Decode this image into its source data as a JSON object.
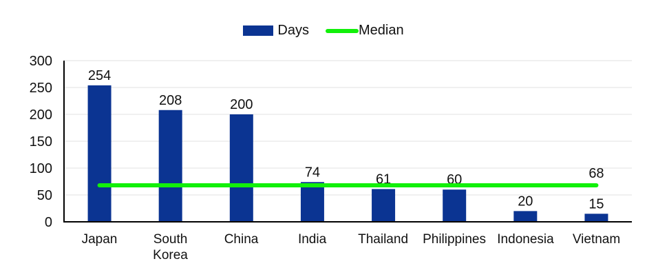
{
  "legend": {
    "items": [
      {
        "label": "Days",
        "swatch": "bar-swatch",
        "color": "#0B3492"
      },
      {
        "label": "Median",
        "swatch": "line-swatch",
        "color": "#12F00A"
      }
    ]
  },
  "chart_data": {
    "type": "bar",
    "title": "",
    "xlabel": "",
    "ylabel": "",
    "categories": [
      "Japan",
      "South Korea",
      "China",
      "India",
      "Thailand",
      "Philippines",
      "Indonesia",
      "Vietnam"
    ],
    "series": [
      {
        "name": "Days",
        "type": "bar",
        "color": "#0B3492",
        "values": [
          254,
          208,
          200,
          74,
          61,
          60,
          20,
          15
        ]
      },
      {
        "name": "Median",
        "type": "line",
        "color": "#12F00A",
        "value": 68,
        "label": "68"
      }
    ],
    "data_labels": [
      "254",
      "208",
      "200",
      "74",
      "61",
      "60",
      "20",
      "15"
    ],
    "ylim": [
      0,
      300
    ],
    "yticks": [
      0,
      50,
      100,
      150,
      200,
      250,
      300
    ],
    "grid": true,
    "legend_position": "top"
  },
  "colors": {
    "bar": "#0B3492",
    "median": "#12F00A",
    "grid": "#E2E2E2",
    "axis": "#000000",
    "text": "#111111",
    "background": "#FFFFFF"
  }
}
